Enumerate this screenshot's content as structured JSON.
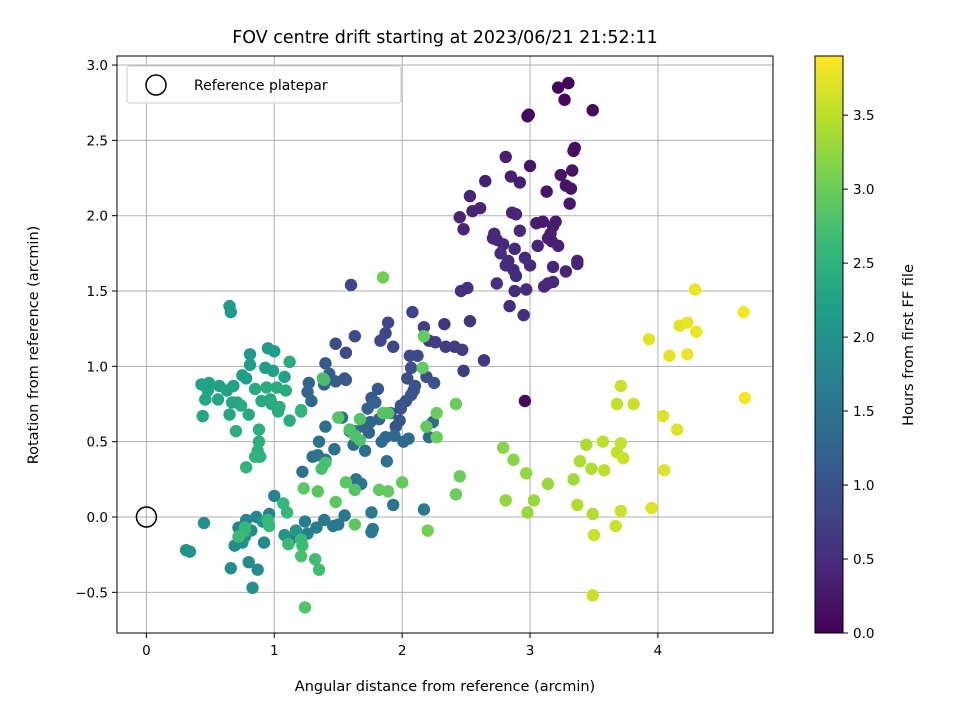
{
  "chart_data": {
    "type": "scatter",
    "title": "FOV centre drift starting at 2023/06/21 21:52:11",
    "xlabel": "Angular distance from reference (arcmin)",
    "ylabel": "Rotation from reference (arcmin)",
    "xlim": [
      -0.23,
      4.9
    ],
    "ylim": [
      -0.77,
      3.06
    ],
    "x_ticks": [
      0,
      1,
      2,
      3,
      4
    ],
    "x_tick_labels": [
      "0",
      "1",
      "2",
      "3",
      "4"
    ],
    "y_ticks": [
      -0.5,
      0.0,
      0.5,
      1.0,
      1.5,
      2.0,
      2.5,
      3.0
    ],
    "y_tick_labels": [
      "−0.5",
      "0.0",
      "0.5",
      "1.0",
      "1.5",
      "2.0",
      "2.5",
      "3.0"
    ],
    "grid": true,
    "legend": {
      "position": "top-left",
      "label": "Reference platepar"
    },
    "reference_point": {
      "x": 0.0,
      "y": 0.0
    },
    "colorbar": {
      "label": "Hours from first FF file",
      "range": [
        0.0,
        3.9
      ],
      "ticks": [
        0.0,
        0.5,
        1.0,
        1.5,
        2.0,
        2.5,
        3.0,
        3.5
      ],
      "tick_labels": [
        "0.0",
        "0.5",
        "1.0",
        "1.5",
        "2.0",
        "2.5",
        "3.0",
        "3.5"
      ],
      "colormap": "viridis"
    },
    "colors": {
      "grid": "#b0b0b0",
      "axes": "#000000",
      "viridis": [
        "#440154",
        "#482878",
        "#3e4989",
        "#31688e",
        "#26828e",
        "#1f9e89",
        "#35b779",
        "#6ece58",
        "#b5de2b",
        "#fde725"
      ]
    },
    "points": [
      [
        3.22,
        2.85,
        0.05
      ],
      [
        3.3,
        2.88,
        0.05
      ],
      [
        3.27,
        2.77,
        0.08
      ],
      [
        3.49,
        2.7,
        0.08
      ],
      [
        2.98,
        2.66,
        0.1
      ],
      [
        2.99,
        2.67,
        0.1
      ],
      [
        3.35,
        2.45,
        0.15
      ],
      [
        3.34,
        2.43,
        0.15
      ],
      [
        3.0,
        2.33,
        0.2
      ],
      [
        3.24,
        2.27,
        0.2
      ],
      [
        3.33,
        2.3,
        0.2
      ],
      [
        3.28,
        2.2,
        0.2
      ],
      [
        3.32,
        2.18,
        0.22
      ],
      [
        3.13,
        2.16,
        0.22
      ],
      [
        3.31,
        2.08,
        0.25
      ],
      [
        3.2,
        1.96,
        0.3
      ],
      [
        3.1,
        1.96,
        0.3
      ],
      [
        3.18,
        1.93,
        0.3
      ],
      [
        3.05,
        1.95,
        0.3
      ],
      [
        3.16,
        1.88,
        0.35
      ],
      [
        3.14,
        1.85,
        0.35
      ],
      [
        3.17,
        1.83,
        0.35
      ],
      [
        3.22,
        1.8,
        0.35
      ],
      [
        3.06,
        1.8,
        0.4
      ],
      [
        3.37,
        1.7,
        0.4
      ],
      [
        3.37,
        1.68,
        0.4
      ],
      [
        3.18,
        1.66,
        0.4
      ],
      [
        3.28,
        1.63,
        0.4
      ],
      [
        3.0,
        1.67,
        0.45
      ],
      [
        3.11,
        1.53,
        0.45
      ],
      [
        3.18,
        1.56,
        0.45
      ],
      [
        3.14,
        1.55,
        0.45
      ],
      [
        2.97,
        1.51,
        0.5
      ],
      [
        2.88,
        1.5,
        0.5
      ],
      [
        2.84,
        1.4,
        0.5
      ],
      [
        2.95,
        1.34,
        0.5
      ],
      [
        2.96,
        0.77,
        0.1
      ],
      [
        2.65,
        2.23,
        0.35
      ],
      [
        2.81,
        2.39,
        0.35
      ],
      [
        2.85,
        2.26,
        0.35
      ],
      [
        2.92,
        2.22,
        0.35
      ],
      [
        2.53,
        2.13,
        0.4
      ],
      [
        2.45,
        1.99,
        0.4
      ],
      [
        2.48,
        1.91,
        0.4
      ],
      [
        2.55,
        2.03,
        0.4
      ],
      [
        2.61,
        2.05,
        0.4
      ],
      [
        2.72,
        1.88,
        0.45
      ],
      [
        2.74,
        1.84,
        0.45
      ],
      [
        2.79,
        1.81,
        0.45
      ],
      [
        2.71,
        1.85,
        0.45
      ],
      [
        2.77,
        1.75,
        0.5
      ],
      [
        2.88,
        1.78,
        0.5
      ],
      [
        2.83,
        1.7,
        0.5
      ],
      [
        2.81,
        1.67,
        0.5
      ],
      [
        2.87,
        1.64,
        0.5
      ],
      [
        2.89,
        1.6,
        0.5
      ],
      [
        2.96,
        1.72,
        0.5
      ],
      [
        2.86,
        2.02,
        0.4
      ],
      [
        2.89,
        2.01,
        0.4
      ],
      [
        2.92,
        1.9,
        0.45
      ],
      [
        2.74,
        1.55,
        0.55
      ],
      [
        2.51,
        1.52,
        0.55
      ],
      [
        2.46,
        1.5,
        0.55
      ],
      [
        2.53,
        1.3,
        0.6
      ],
      [
        2.33,
        1.28,
        0.6
      ],
      [
        2.64,
        1.04,
        0.6
      ],
      [
        2.34,
        1.13,
        0.7
      ],
      [
        2.41,
        1.13,
        0.7
      ],
      [
        2.47,
        1.11,
        0.7
      ],
      [
        2.48,
        0.97,
        0.7
      ],
      [
        2.21,
        1.17,
        0.7
      ],
      [
        2.26,
        1.16,
        0.7
      ],
      [
        2.17,
        1.26,
        0.75
      ],
      [
        2.08,
        1.36,
        0.8
      ],
      [
        1.83,
        1.17,
        0.85
      ],
      [
        1.87,
        1.22,
        0.85
      ],
      [
        1.89,
        1.29,
        0.85
      ],
      [
        1.93,
        1.13,
        0.85
      ],
      [
        1.6,
        1.54,
        0.85
      ],
      [
        1.56,
        1.09,
        0.9
      ],
      [
        1.63,
        1.2,
        0.9
      ],
      [
        1.48,
        1.15,
        0.9
      ],
      [
        2.06,
        1.07,
        0.9
      ],
      [
        2.12,
        1.07,
        0.9
      ],
      [
        2.07,
        0.99,
        0.95
      ],
      [
        2.04,
        0.92,
        0.95
      ],
      [
        2.19,
        0.93,
        0.95
      ],
      [
        2.25,
        0.89,
        1.0
      ],
      [
        2.1,
        0.87,
        1.0
      ],
      [
        2.09,
        0.84,
        1.0
      ],
      [
        2.07,
        0.81,
        1.0
      ],
      [
        2.03,
        0.77,
        1.0
      ],
      [
        1.99,
        0.74,
        1.0
      ],
      [
        1.99,
        0.72,
        1.0
      ],
      [
        1.91,
        0.69,
        1.05
      ],
      [
        1.98,
        0.64,
        1.05
      ],
      [
        1.95,
        0.6,
        1.05
      ],
      [
        1.81,
        0.85,
        1.05
      ],
      [
        1.76,
        0.79,
        1.1
      ],
      [
        1.56,
        0.91,
        1.1
      ],
      [
        1.55,
        0.92,
        1.1
      ],
      [
        1.4,
        1.02,
        1.1
      ],
      [
        1.43,
        0.95,
        1.15
      ],
      [
        1.48,
        0.9,
        1.15
      ],
      [
        1.39,
        0.88,
        1.2
      ],
      [
        1.27,
        0.89,
        1.25
      ],
      [
        1.26,
        0.83,
        1.25
      ],
      [
        1.29,
        0.77,
        1.3
      ],
      [
        1.79,
        0.76,
        1.2
      ],
      [
        1.73,
        0.72,
        1.2
      ],
      [
        1.82,
        0.65,
        1.25
      ],
      [
        1.75,
        0.63,
        1.25
      ],
      [
        1.7,
        0.6,
        1.25
      ],
      [
        1.74,
        0.56,
        1.25
      ],
      [
        1.94,
        0.54,
        1.3
      ],
      [
        1.87,
        0.53,
        1.3
      ],
      [
        1.84,
        0.5,
        1.3
      ],
      [
        2.01,
        0.5,
        1.3
      ],
      [
        2.05,
        0.52,
        1.3
      ],
      [
        2.21,
        0.53,
        1.35
      ],
      [
        2.24,
        0.63,
        1.35
      ],
      [
        1.88,
        0.37,
        1.4
      ],
      [
        1.71,
        0.44,
        1.4
      ],
      [
        1.62,
        0.48,
        1.4
      ],
      [
        1.63,
        0.57,
        1.4
      ],
      [
        1.59,
        0.57,
        1.4
      ],
      [
        1.53,
        0.66,
        1.4
      ],
      [
        1.47,
        0.45,
        1.45
      ],
      [
        1.4,
        0.38,
        1.45
      ],
      [
        1.35,
        0.5,
        1.45
      ],
      [
        1.4,
        0.6,
        1.45
      ],
      [
        1.34,
        0.41,
        1.5
      ],
      [
        1.3,
        0.4,
        1.5
      ],
      [
        1.22,
        0.3,
        1.5
      ],
      [
        1.64,
        0.25,
        1.5
      ],
      [
        1.68,
        0.22,
        1.5
      ],
      [
        1.93,
        0.08,
        1.5
      ],
      [
        2.17,
        0.05,
        1.55
      ],
      [
        1.76,
        0.03,
        1.55
      ],
      [
        1.77,
        -0.08,
        1.6
      ],
      [
        1.76,
        -0.1,
        1.6
      ],
      [
        1.55,
        0.01,
        1.6
      ],
      [
        1.5,
        -0.05,
        1.6
      ],
      [
        1.46,
        -0.06,
        1.6
      ],
      [
        1.39,
        -0.02,
        1.6
      ],
      [
        1.33,
        -0.07,
        1.65
      ],
      [
        1.24,
        -0.03,
        1.65
      ],
      [
        1.26,
        -0.11,
        1.7
      ],
      [
        1.17,
        -0.13,
        1.7
      ],
      [
        1.12,
        -0.16,
        1.75
      ],
      [
        1.0,
        0.14,
        1.75
      ],
      [
        0.96,
        0.02,
        1.75
      ],
      [
        0.86,
        0.0,
        1.8
      ],
      [
        0.78,
        -0.02,
        1.8
      ],
      [
        0.72,
        -0.07,
        1.8
      ],
      [
        0.82,
        -0.09,
        1.85
      ],
      [
        0.92,
        -0.17,
        1.85
      ],
      [
        0.75,
        -0.17,
        1.85
      ],
      [
        0.69,
        -0.19,
        1.9
      ],
      [
        0.8,
        -0.3,
        1.9
      ],
      [
        0.87,
        -0.35,
        1.9
      ],
      [
        0.66,
        -0.34,
        1.9
      ],
      [
        0.83,
        -0.47,
        1.95
      ],
      [
        0.45,
        -0.04,
        1.95
      ],
      [
        0.31,
        -0.22,
        2.0
      ],
      [
        0.34,
        -0.23,
        2.0
      ],
      [
        0.77,
        -0.13,
        2.0
      ],
      [
        1.17,
        -0.09,
        2.05
      ],
      [
        1.08,
        -0.12,
        2.05
      ],
      [
        0.91,
        -0.03,
        2.05
      ],
      [
        0.65,
        1.4,
        2.1
      ],
      [
        0.66,
        1.36,
        2.1
      ],
      [
        0.81,
        1.08,
        2.1
      ],
      [
        0.95,
        1.12,
        2.15
      ],
      [
        1.0,
        1.1,
        2.15
      ],
      [
        0.81,
        1.01,
        2.15
      ],
      [
        0.93,
        0.99,
        2.15
      ],
      [
        0.99,
        0.97,
        2.2
      ],
      [
        1.08,
        0.93,
        2.2
      ],
      [
        0.78,
        0.92,
        2.2
      ],
      [
        0.75,
        0.94,
        2.2
      ],
      [
        0.57,
        0.87,
        2.2
      ],
      [
        0.68,
        0.87,
        2.25
      ],
      [
        0.63,
        0.84,
        2.25
      ],
      [
        0.49,
        0.89,
        2.25
      ],
      [
        0.43,
        0.88,
        2.25
      ],
      [
        0.48,
        0.84,
        2.25
      ],
      [
        0.46,
        0.78,
        2.3
      ],
      [
        0.44,
        0.67,
        2.3
      ],
      [
        0.56,
        0.78,
        2.3
      ],
      [
        0.67,
        0.76,
        2.3
      ],
      [
        0.65,
        0.68,
        2.3
      ],
      [
        0.71,
        0.76,
        2.3
      ],
      [
        0.8,
        0.68,
        2.35
      ],
      [
        0.74,
        0.74,
        2.35
      ],
      [
        0.85,
        0.85,
        2.35
      ],
      [
        0.9,
        0.77,
        2.35
      ],
      [
        0.97,
        0.78,
        2.35
      ],
      [
        1.02,
        0.86,
        2.4
      ],
      [
        1.04,
        0.73,
        2.4
      ],
      [
        1.03,
        0.7,
        2.4
      ],
      [
        0.98,
        0.75,
        2.4
      ],
      [
        0.94,
        0.86,
        2.4
      ],
      [
        1.12,
        0.64,
        2.4
      ],
      [
        1.09,
        0.84,
        2.4
      ],
      [
        1.12,
        1.03,
        2.4
      ],
      [
        0.7,
        0.57,
        2.45
      ],
      [
        0.88,
        0.58,
        2.45
      ],
      [
        0.88,
        0.5,
        2.45
      ],
      [
        0.87,
        0.44,
        2.45
      ],
      [
        0.89,
        0.4,
        2.5
      ],
      [
        0.85,
        0.4,
        2.5
      ],
      [
        0.78,
        0.33,
        2.5
      ],
      [
        1.21,
        0.71,
        2.55
      ],
      [
        1.21,
        0.7,
        2.55
      ],
      [
        1.07,
        0.09,
        2.6
      ],
      [
        1.1,
        0.03,
        2.6
      ],
      [
        0.95,
        -0.02,
        2.6
      ],
      [
        0.96,
        -0.06,
        2.6
      ],
      [
        0.77,
        -0.07,
        2.6
      ],
      [
        0.77,
        -0.09,
        2.6
      ],
      [
        0.72,
        -0.13,
        2.65
      ],
      [
        1.11,
        -0.18,
        2.65
      ],
      [
        1.21,
        -0.15,
        2.65
      ],
      [
        1.22,
        -0.19,
        2.65
      ],
      [
        1.32,
        -0.28,
        2.7
      ],
      [
        1.35,
        -0.35,
        2.7
      ],
      [
        1.21,
        -0.26,
        2.75
      ],
      [
        1.24,
        -0.6,
        2.8
      ],
      [
        1.37,
        0.32,
        2.75
      ],
      [
        1.4,
        0.36,
        2.75
      ],
      [
        1.39,
        0.91,
        2.75
      ],
      [
        1.38,
        0.92,
        2.75
      ],
      [
        1.63,
        0.54,
        2.8
      ],
      [
        1.67,
        0.51,
        2.8
      ],
      [
        1.59,
        0.58,
        2.8
      ],
      [
        1.67,
        0.65,
        2.85
      ],
      [
        1.5,
        0.66,
        2.85
      ],
      [
        1.85,
        0.69,
        2.85
      ],
      [
        1.89,
        0.69,
        2.85
      ],
      [
        1.63,
        0.18,
        2.85
      ],
      [
        1.48,
        0.1,
        2.9
      ],
      [
        1.23,
        0.19,
        2.9
      ],
      [
        1.34,
        0.17,
        2.9
      ],
      [
        1.56,
        0.23,
        2.9
      ],
      [
        1.63,
        -0.05,
        2.9
      ],
      [
        1.82,
        0.18,
        2.95
      ],
      [
        1.89,
        0.17,
        2.95
      ],
      [
        2.0,
        0.23,
        2.95
      ],
      [
        2.19,
        0.6,
        2.95
      ],
      [
        2.16,
        0.99,
        2.95
      ],
      [
        2.17,
        1.2,
        2.95
      ],
      [
        2.27,
        0.69,
        3.0
      ],
      [
        2.42,
        0.75,
        3.0
      ],
      [
        2.27,
        0.53,
        3.0
      ],
      [
        2.42,
        0.15,
        3.0
      ],
      [
        2.45,
        0.27,
        3.0
      ],
      [
        2.2,
        -0.09,
        3.05
      ],
      [
        1.85,
        1.59,
        3.05
      ],
      [
        2.79,
        0.46,
        3.2
      ],
      [
        2.87,
        0.38,
        3.2
      ],
      [
        2.97,
        0.29,
        3.25
      ],
      [
        2.81,
        0.11,
        3.25
      ],
      [
        3.03,
        0.11,
        3.3
      ],
      [
        2.98,
        0.03,
        3.3
      ],
      [
        3.14,
        0.22,
        3.3
      ],
      [
        3.34,
        0.25,
        3.35
      ],
      [
        3.39,
        0.37,
        3.4
      ],
      [
        3.44,
        0.48,
        3.4
      ],
      [
        3.37,
        0.08,
        3.45
      ],
      [
        3.49,
        0.02,
        3.45
      ],
      [
        3.48,
        0.32,
        3.45
      ],
      [
        3.57,
        0.5,
        3.5
      ],
      [
        3.58,
        0.31,
        3.5
      ],
      [
        3.68,
        0.43,
        3.55
      ],
      [
        3.71,
        0.49,
        3.55
      ],
      [
        3.68,
        0.75,
        3.55
      ],
      [
        3.71,
        0.87,
        3.6
      ],
      [
        3.81,
        0.75,
        3.6
      ],
      [
        3.73,
        0.39,
        3.6
      ],
      [
        3.71,
        0.04,
        3.6
      ],
      [
        3.67,
        -0.06,
        3.6
      ],
      [
        3.5,
        -0.12,
        3.6
      ],
      [
        3.49,
        -0.52,
        3.6
      ],
      [
        3.95,
        0.06,
        3.7
      ],
      [
        4.05,
        0.31,
        3.7
      ],
      [
        4.04,
        0.67,
        3.7
      ],
      [
        4.15,
        0.58,
        3.7
      ],
      [
        3.93,
        1.18,
        3.75
      ],
      [
        4.09,
        1.07,
        3.75
      ],
      [
        4.17,
        1.27,
        3.75
      ],
      [
        4.23,
        1.08,
        3.8
      ],
      [
        4.23,
        1.29,
        3.8
      ],
      [
        4.3,
        1.23,
        3.8
      ],
      [
        4.29,
        1.51,
        3.8
      ],
      [
        4.67,
        1.36,
        3.85
      ],
      [
        4.68,
        0.79,
        3.85
      ]
    ]
  }
}
